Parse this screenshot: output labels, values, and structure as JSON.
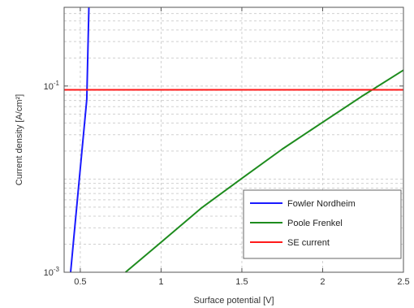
{
  "chart_data": {
    "type": "line",
    "title": "",
    "xlabel": "Surface potential [V]",
    "ylabel": "Current density [A/cm²]",
    "xlim": [
      0.4,
      2.5
    ],
    "ylim": [
      0.001,
      0.7
    ],
    "yscale": "log",
    "grid": true,
    "legend_position": "bottom-right",
    "x_ticks": [
      {
        "value": 0.5,
        "label": "0.5"
      },
      {
        "value": 1,
        "label": "1"
      },
      {
        "value": 1.5,
        "label": "1.5"
      },
      {
        "value": 2,
        "label": "2"
      },
      {
        "value": 2.5,
        "label": "2.5"
      }
    ],
    "y_ticks": [
      {
        "value": 0.001,
        "base": "10",
        "exp": "-3"
      },
      {
        "value": 0.1,
        "base": "10",
        "exp": "-1"
      }
    ],
    "series": [
      {
        "name": "Fowler Nordheim",
        "color": "#1a1aff",
        "x": [
          0.44,
          0.46,
          0.48,
          0.5,
          0.52,
          0.54,
          0.553
        ],
        "y": [
          0.001,
          0.00233,
          0.0055,
          0.013,
          0.0305,
          0.0717,
          0.7
        ]
      },
      {
        "name": "Poole Frenkel",
        "color": "#1e8c1e",
        "x": [
          0.78,
          1.0,
          1.25,
          1.5,
          1.75,
          2.0,
          2.25,
          2.5
        ],
        "y": [
          0.001,
          0.0021,
          0.0049,
          0.0102,
          0.021,
          0.0408,
          0.079,
          0.148
        ]
      },
      {
        "name": "SE current",
        "color": "#ff1a1a",
        "x": [
          0.4,
          2.5
        ],
        "y": [
          0.091,
          0.091
        ]
      }
    ]
  }
}
